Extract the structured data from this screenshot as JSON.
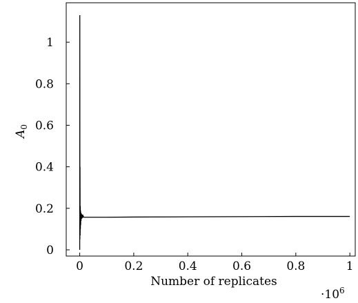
{
  "chart_data": {
    "type": "line",
    "title": "",
    "xlabel": "Number of replicates",
    "ylabel": "A",
    "ylabel_subscript": "0",
    "x_multiplier_label": "·10",
    "x_multiplier_exponent": "6",
    "xlim": [
      -0.05,
      1.02
    ],
    "ylim": [
      -0.03,
      1.19
    ],
    "x_ticks": [
      0,
      0.2,
      0.4,
      0.6,
      0.8,
      1
    ],
    "x_tick_labels": [
      "0",
      "0.2",
      "0.4",
      "0.6",
      "0.8",
      "1"
    ],
    "y_ticks": [
      0,
      0.2,
      0.4,
      0.6,
      0.8,
      1
    ],
    "y_tick_labels": [
      "0",
      "0.2",
      "0.4",
      "0.6",
      "0.8",
      "1"
    ],
    "grid": false,
    "legend": "none",
    "color": "#000000",
    "series": [
      {
        "x": [
          0,
          0.0003,
          0.0006,
          0.001,
          0.0015,
          0.002,
          0.0025,
          0.003,
          0.0035,
          0.004,
          0.005,
          0.006,
          0.007,
          0.008,
          0.009,
          0.01,
          0.011,
          0.012,
          0.015,
          0.02,
          0.05,
          0.1,
          0.2,
          0.4,
          0.6,
          0.8,
          1.0
        ],
        "y": [
          0.0,
          1.13,
          0.05,
          0.4,
          0.07,
          0.21,
          0.1,
          0.19,
          0.12,
          0.18,
          0.14,
          0.175,
          0.15,
          0.17,
          0.152,
          0.168,
          0.155,
          0.165,
          0.157,
          0.157,
          0.157,
          0.157,
          0.158,
          0.159,
          0.16,
          0.161,
          0.161
        ]
      }
    ]
  }
}
